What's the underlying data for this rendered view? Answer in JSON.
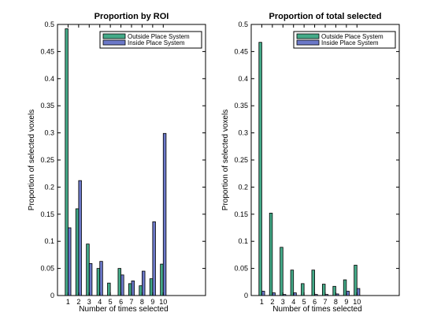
{
  "chart_data": [
    {
      "type": "bar",
      "title": "Proportion by ROI",
      "xlabel": "Number of times selected",
      "ylabel": "Proportion of selected voxels",
      "categories": [
        1,
        2,
        3,
        4,
        5,
        6,
        7,
        8,
        9,
        10
      ],
      "xlim": [
        0,
        14
      ],
      "ylim": [
        0,
        0.5
      ],
      "x_ticks": [
        1,
        2,
        3,
        4,
        5,
        6,
        7,
        8,
        9,
        10
      ],
      "y_ticks": [
        0,
        0.05,
        0.1,
        0.15,
        0.2,
        0.25,
        0.3,
        0.35,
        0.4,
        0.45,
        0.5
      ],
      "grid": false,
      "legend_position": "top-right",
      "series": [
        {
          "name": "Outside Place System",
          "color": "#44aa88",
          "values": [
            0.492,
            0.16,
            0.095,
            0.05,
            0.023,
            0.05,
            0.022,
            0.018,
            0.031,
            0.058
          ]
        },
        {
          "name": "Inside Place System",
          "color": "#6b78c8",
          "values": [
            0.125,
            0.212,
            0.059,
            0.063,
            0.0,
            0.038,
            0.027,
            0.045,
            0.136,
            0.299
          ]
        }
      ]
    },
    {
      "type": "bar",
      "title": "Proportion of total selected",
      "xlabel": "Number of times selected",
      "ylabel": "Proportion of selected voxels",
      "categories": [
        1,
        2,
        3,
        4,
        5,
        6,
        7,
        8,
        9,
        10
      ],
      "xlim": [
        0,
        14
      ],
      "ylim": [
        0,
        0.5
      ],
      "x_ticks": [
        1,
        2,
        3,
        4,
        5,
        6,
        7,
        8,
        9,
        10
      ],
      "y_ticks": [
        0,
        0.05,
        0.1,
        0.15,
        0.2,
        0.25,
        0.3,
        0.35,
        0.4,
        0.45,
        0.5
      ],
      "grid": false,
      "legend_position": "top-right",
      "series": [
        {
          "name": "Outside Place System",
          "color": "#44aa88",
          "values": [
            0.467,
            0.152,
            0.089,
            0.047,
            0.022,
            0.047,
            0.021,
            0.017,
            0.029,
            0.056
          ]
        },
        {
          "name": "Inside Place System",
          "color": "#6b78c8",
          "values": [
            0.008,
            0.005,
            0.002,
            0.005,
            0.0,
            0.002,
            0.002,
            0.003,
            0.008,
            0.013
          ]
        }
      ]
    }
  ]
}
